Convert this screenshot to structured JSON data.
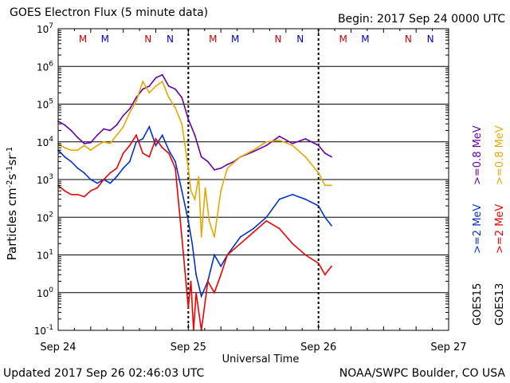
{
  "header": {
    "title": "GOES Electron Flux (5 minute data)",
    "begin": "Begin: 2017 Sep 24 0000 UTC"
  },
  "footer": {
    "updated": "Updated 2017 Sep 26 02:46:03 UTC",
    "credit": "NOAA/SWPC Boulder, CO USA"
  },
  "chart_data": {
    "type": "line",
    "title": "GOES Electron Flux (5 minute data)",
    "xlabel": "Universal Time",
    "ylabel": "Particles cm-2s-1sr-1",
    "yscale": "log",
    "ylim_exp": [
      -1,
      7
    ],
    "y_tick_exponents": [
      -1,
      0,
      1,
      2,
      3,
      4,
      5,
      6,
      7
    ],
    "x_unit": "days since 2017 Sep 24 0000 UTC",
    "xlim": [
      0,
      3
    ],
    "x_ticks": [
      {
        "x": 0,
        "label": "Sep 24"
      },
      {
        "x": 1,
        "label": "Sep 25"
      },
      {
        "x": 2,
        "label": "Sep 26"
      },
      {
        "x": 3,
        "label": "Sep 27"
      }
    ],
    "threshold_line": 1000,
    "midnight_markers": [
      1,
      2
    ],
    "satellite_position_markers": [
      {
        "x": 0.19,
        "letter": "M",
        "color": "#cc0000"
      },
      {
        "x": 0.36,
        "letter": "M",
        "color": "#0000cc"
      },
      {
        "x": 0.69,
        "letter": "N",
        "color": "#cc0000"
      },
      {
        "x": 0.86,
        "letter": "N",
        "color": "#0000cc"
      },
      {
        "x": 1.19,
        "letter": "M",
        "color": "#cc0000"
      },
      {
        "x": 1.36,
        "letter": "M",
        "color": "#0000cc"
      },
      {
        "x": 1.69,
        "letter": "N",
        "color": "#cc0000"
      },
      {
        "x": 1.86,
        "letter": "N",
        "color": "#0000cc"
      },
      {
        "x": 2.19,
        "letter": "M",
        "color": "#cc0000"
      },
      {
        "x": 2.36,
        "letter": "M",
        "color": "#0000cc"
      },
      {
        "x": 2.69,
        "letter": "N",
        "color": "#cc0000"
      },
      {
        "x": 2.86,
        "letter": "N",
        "color": "#0000cc"
      }
    ],
    "legend": {
      "groups": [
        {
          "satellite": "GOES15",
          "entries": [
            {
              "label": ">=0.8 MeV",
              "color": "#6600aa"
            },
            {
              "label": ">=2 MeV",
              "color": "#0033cc"
            }
          ]
        },
        {
          "satellite": "GOES13",
          "entries": [
            {
              "label": ">=0.8 MeV",
              "color": "#e6a800"
            },
            {
              "label": ">=2 MeV",
              "color": "#ee0000"
            }
          ]
        }
      ],
      "placement": "right, vertical"
    },
    "series": [
      {
        "name": "GOES15 >=0.8 MeV",
        "color": "#6600aa",
        "x": [
          0,
          0.05,
          0.1,
          0.15,
          0.2,
          0.25,
          0.3,
          0.35,
          0.4,
          0.45,
          0.5,
          0.55,
          0.6,
          0.65,
          0.7,
          0.75,
          0.8,
          0.85,
          0.9,
          0.95,
          1.0,
          1.05,
          1.1,
          1.15,
          1.2,
          1.25,
          1.3,
          1.35,
          1.4,
          1.5,
          1.6,
          1.7,
          1.8,
          1.9,
          2.0,
          2.05,
          2.1
        ],
        "y": [
          35000,
          28000,
          20000,
          13000,
          9000,
          9500,
          15000,
          22000,
          20000,
          28000,
          50000,
          75000,
          150000,
          250000,
          300000,
          500000,
          600000,
          300000,
          250000,
          150000,
          40000,
          15000,
          4000,
          3000,
          1800,
          2000,
          2500,
          3000,
          4000,
          5500,
          8000,
          14000,
          9000,
          12000,
          8000,
          5000,
          4000
        ]
      },
      {
        "name": "GOES13 >=0.8 MeV",
        "color": "#e6a800",
        "x": [
          0,
          0.05,
          0.1,
          0.15,
          0.2,
          0.25,
          0.3,
          0.35,
          0.4,
          0.45,
          0.5,
          0.55,
          0.6,
          0.65,
          0.7,
          0.75,
          0.8,
          0.85,
          0.9,
          0.95,
          1.0,
          1.02,
          1.05,
          1.08,
          1.1,
          1.13,
          1.16,
          1.2,
          1.25,
          1.3,
          1.4,
          1.5,
          1.6,
          1.7,
          1.8,
          1.9,
          2.0,
          2.05,
          2.1
        ],
        "y": [
          9000,
          7000,
          6000,
          6000,
          8000,
          6000,
          8000,
          10000,
          9000,
          15000,
          25000,
          60000,
          120000,
          400000,
          200000,
          300000,
          400000,
          150000,
          80000,
          30000,
          2000,
          500,
          300,
          1200,
          30,
          600,
          80,
          30,
          500,
          2000,
          4000,
          6000,
          10000,
          11000,
          8000,
          4000,
          1500,
          700,
          700
        ]
      },
      {
        "name": "GOES15 >=2 MeV",
        "color": "#0033cc",
        "x": [
          0,
          0.05,
          0.1,
          0.15,
          0.2,
          0.25,
          0.3,
          0.35,
          0.4,
          0.45,
          0.5,
          0.55,
          0.6,
          0.65,
          0.7,
          0.75,
          0.8,
          0.85,
          0.9,
          0.95,
          1.0,
          1.03,
          1.06,
          1.1,
          1.15,
          1.2,
          1.25,
          1.3,
          1.4,
          1.5,
          1.6,
          1.7,
          1.8,
          1.9,
          2.0,
          2.05,
          2.1
        ],
        "y": [
          6000,
          4000,
          3000,
          2000,
          1500,
          1000,
          800,
          1000,
          800,
          1200,
          2000,
          3000,
          10000,
          12000,
          25000,
          8000,
          15000,
          6000,
          3000,
          500,
          80,
          20,
          3,
          0.8,
          2,
          10,
          5,
          10,
          30,
          50,
          100,
          300,
          400,
          300,
          200,
          100,
          60
        ]
      },
      {
        "name": "GOES13 >=2 MeV",
        "color": "#ee0000",
        "x": [
          0,
          0.05,
          0.1,
          0.15,
          0.2,
          0.25,
          0.3,
          0.35,
          0.4,
          0.45,
          0.5,
          0.55,
          0.6,
          0.65,
          0.7,
          0.75,
          0.8,
          0.85,
          0.9,
          0.95,
          1.0,
          1.02,
          1.04,
          1.06,
          1.1,
          1.15,
          1.2,
          1.25,
          1.3,
          1.4,
          1.5,
          1.6,
          1.7,
          1.8,
          1.9,
          2.0,
          2.05,
          2.1
        ],
        "y": [
          700,
          500,
          400,
          400,
          350,
          500,
          600,
          1000,
          1500,
          2000,
          5000,
          8000,
          15000,
          5000,
          4000,
          12000,
          7000,
          5000,
          2000,
          30,
          0.4,
          2,
          0.1,
          1,
          0.1,
          2,
          1,
          3,
          10,
          20,
          40,
          80,
          50,
          20,
          10,
          6,
          3,
          5
        ]
      }
    ]
  }
}
